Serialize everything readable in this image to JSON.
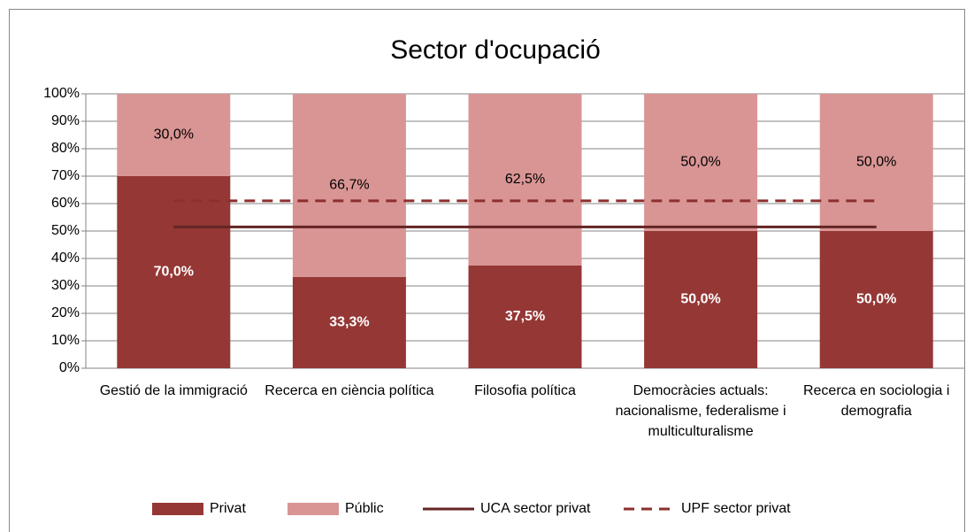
{
  "chart_data": {
    "type": "bar",
    "stacked": true,
    "title": "Sector d'ocupació",
    "categories": [
      "Gestió de la immigració",
      "Recerca en ciència política",
      "Filosofia política",
      "Democràcies actuals: nacionalisme, federalisme i multiculturalisme",
      "Recerca en sociologia i demografia"
    ],
    "series": [
      {
        "name": "Privat",
        "type": "bar",
        "color": "#953735",
        "values": [
          70,
          33.3,
          37.5,
          50,
          50
        ],
        "value_labels": [
          "70,0%",
          "33,3%",
          "37,5%",
          "50,0%",
          "50,0%"
        ]
      },
      {
        "name": "Públic",
        "type": "bar",
        "color": "#d99594",
        "values": [
          30,
          66.7,
          62.5,
          50,
          50
        ],
        "value_labels": [
          "30,0%",
          "66,7%",
          "62,5%",
          "50,0%",
          "50,0%"
        ]
      },
      {
        "name": "UCA sector privat",
        "type": "line",
        "color": "#632523",
        "dashed": false,
        "values": [
          51.5,
          51.5,
          51.5,
          51.5,
          51.5
        ]
      },
      {
        "name": "UPF sector privat",
        "type": "line",
        "color": "#8c2f2e",
        "dashed": true,
        "values": [
          61,
          61,
          61,
          61,
          61
        ]
      }
    ],
    "ylim": [
      0,
      100
    ],
    "yticks": [
      {
        "value": 0,
        "label": "0%"
      },
      {
        "value": 10,
        "label": "10%"
      },
      {
        "value": 20,
        "label": "20%"
      },
      {
        "value": 30,
        "label": "30%"
      },
      {
        "value": 40,
        "label": "40%"
      },
      {
        "value": 50,
        "label": "50%"
      },
      {
        "value": 60,
        "label": "60%"
      },
      {
        "value": 70,
        "label": "70%"
      },
      {
        "value": 80,
        "label": "80%"
      },
      {
        "value": 90,
        "label": "90%"
      },
      {
        "value": 100,
        "label": "100%"
      }
    ],
    "grid": true,
    "legend": "bottom"
  }
}
